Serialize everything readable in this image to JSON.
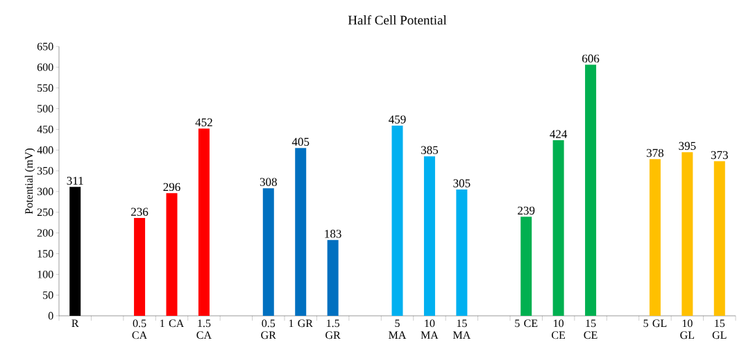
{
  "chart_data": {
    "type": "bar",
    "title": "Half Cell Potential",
    "ylabel": "Potential  (mV)",
    "categories": [
      "R",
      null,
      "0.5 CA",
      "1 CA",
      "1.5 CA",
      null,
      "0.5 GR",
      "1 GR",
      "1.5 GR",
      null,
      "5 MA",
      "10 MA",
      "15 MA",
      null,
      "5 CE",
      "10 CE",
      "15 CE",
      null,
      "5 GL",
      "10 GL",
      "15 GL"
    ],
    "values": [
      311,
      null,
      236,
      296,
      452,
      null,
      308,
      405,
      183,
      null,
      459,
      385,
      305,
      null,
      239,
      424,
      606,
      null,
      378,
      395,
      373
    ],
    "colors": [
      "#000000",
      null,
      "#ff0000",
      "#ff0000",
      "#ff0000",
      null,
      "#0070c0",
      "#0070c0",
      "#0070c0",
      null,
      "#00b0f0",
      "#00b0f0",
      "#00b0f0",
      null,
      "#00b050",
      "#00b050",
      "#00b050",
      null,
      "#ffc000",
      "#ffc000",
      "#ffc000"
    ],
    "ylim": [
      0,
      650
    ],
    "yticks": [
      0,
      50,
      100,
      150,
      200,
      250,
      300,
      350,
      400,
      450,
      500,
      550,
      600,
      650
    ],
    "data_labels": true,
    "grid": false
  }
}
